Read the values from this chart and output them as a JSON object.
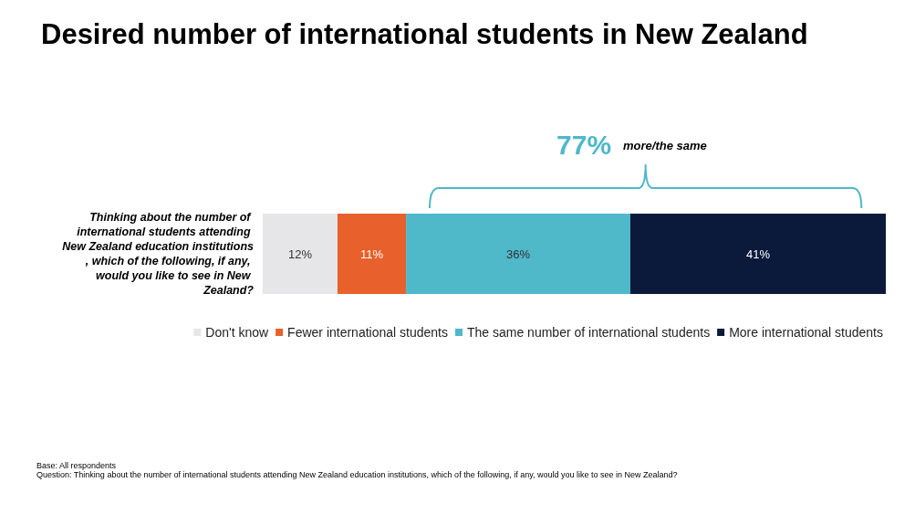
{
  "chart_data": {
    "type": "bar",
    "orientation": "horizontal",
    "stacked": true,
    "title": "Desired number of international students in New Zealand",
    "categories": [
      "Thinking about the number of international students attending New Zealand education institutions, which of the following, if any, would you like to see in New Zealand?"
    ],
    "xlim": [
      0,
      100
    ],
    "tick_labels": "y",
    "series": [
      {
        "name": "Don't know",
        "color": "#e6e6e8",
        "values": [
          12
        ],
        "value_labels": [
          "12%"
        ]
      },
      {
        "name": "Fewer international students",
        "color": "#e8602c",
        "values": [
          11
        ],
        "value_labels": [
          "11%"
        ]
      },
      {
        "name": "The same number of international students",
        "color": "#4fb8c9",
        "values": [
          36
        ],
        "value_labels": [
          "36%"
        ]
      },
      {
        "name": "More international students",
        "color": "#0b1a3a",
        "values": [
          41
        ],
        "value_labels": [
          "41%"
        ]
      }
    ],
    "legend": "bottom",
    "annotations": [
      "77%",
      "more/the same",
      "Base: All respondents",
      "Question: Thinking about the number of international students attending New Zealand education institutions, which of the following, if any, would you like to see in New Zealand?"
    ]
  }
}
